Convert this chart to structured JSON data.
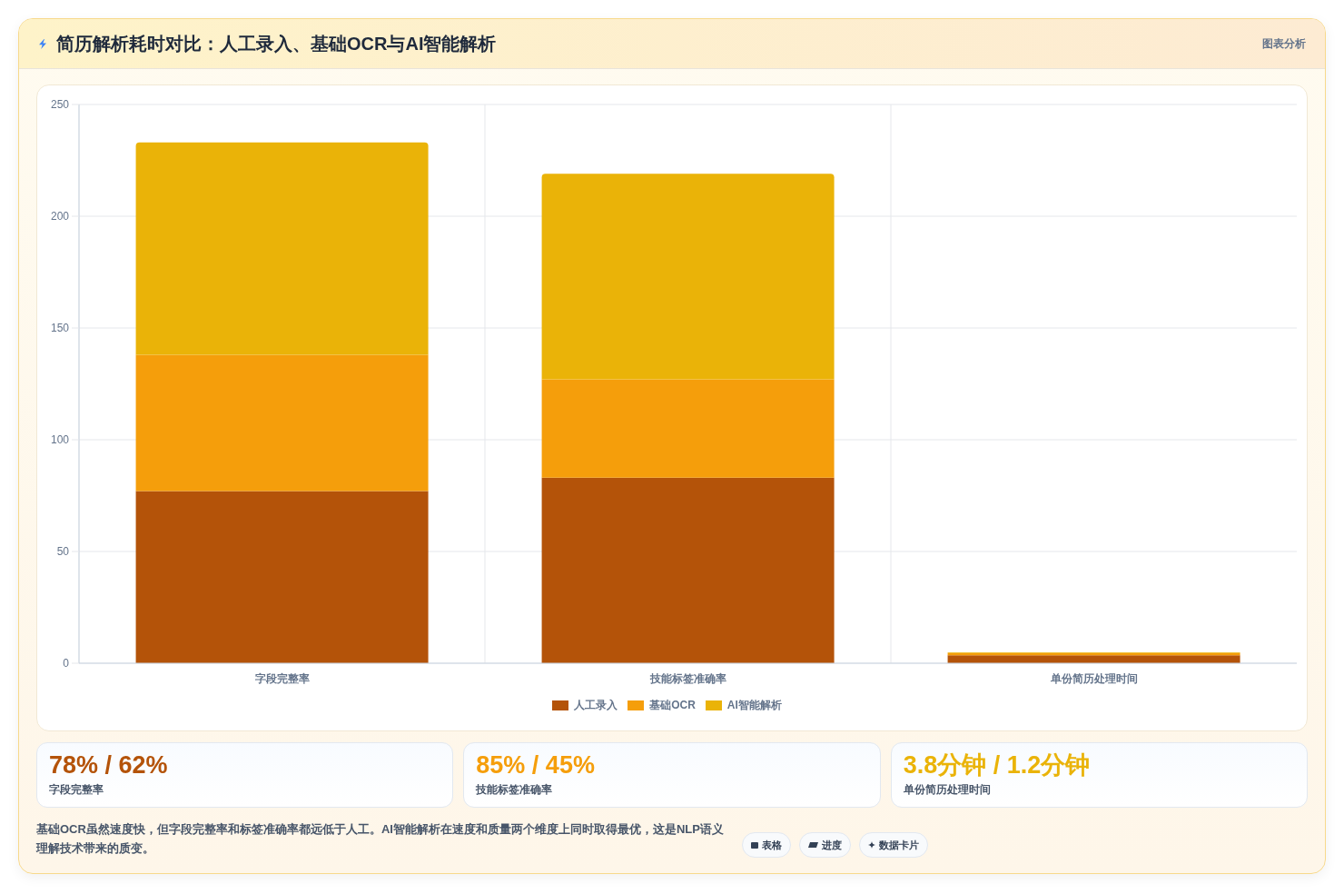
{
  "chart_data": [
    {
      "type": "bar",
      "title": "简历解析耗时对比：人工录入、基础OCR与AI智能解析",
      "annotations": [
        "图表分析"
      ],
      "categories": [
        "字段完整率",
        "技能标签准确率",
        "单份简历处理时间"
      ],
      "series": [
        {
          "name": "人工录入",
          "color": "#b45309",
          "values": [
            77,
            83,
            3.6
          ]
        },
        {
          "name": "基础OCR",
          "color": "#f59e0b",
          "values": [
            61,
            44,
            1.0
          ]
        },
        {
          "name": "AI智能解析",
          "color": "#eab308",
          "values": [
            95,
            92,
            0.3
          ]
        }
      ],
      "stacked": true,
      "ylim": [
        0,
        250
      ],
      "yticks": [
        0,
        50,
        100,
        150,
        200,
        250
      ],
      "grid": true,
      "legend": "bottom"
    },
    {
      "type": "other",
      "categories": [
        "字段完整率",
        "技能标签准确率",
        "单份简历处理时间"
      ],
      "annotations": [
        "78% / 62%",
        "85% / 45%",
        "3.8分钟 / 1.2分钟",
        "基础OCR虽然速度快，但字段完整率和标签准确率都远低于人工。AI智能解析在速度和质量两个维度上同时取得最优，这是NLP语义理解技术带来的质变。",
        "表格",
        "进度",
        "数据卡片"
      ]
    }
  ]
}
